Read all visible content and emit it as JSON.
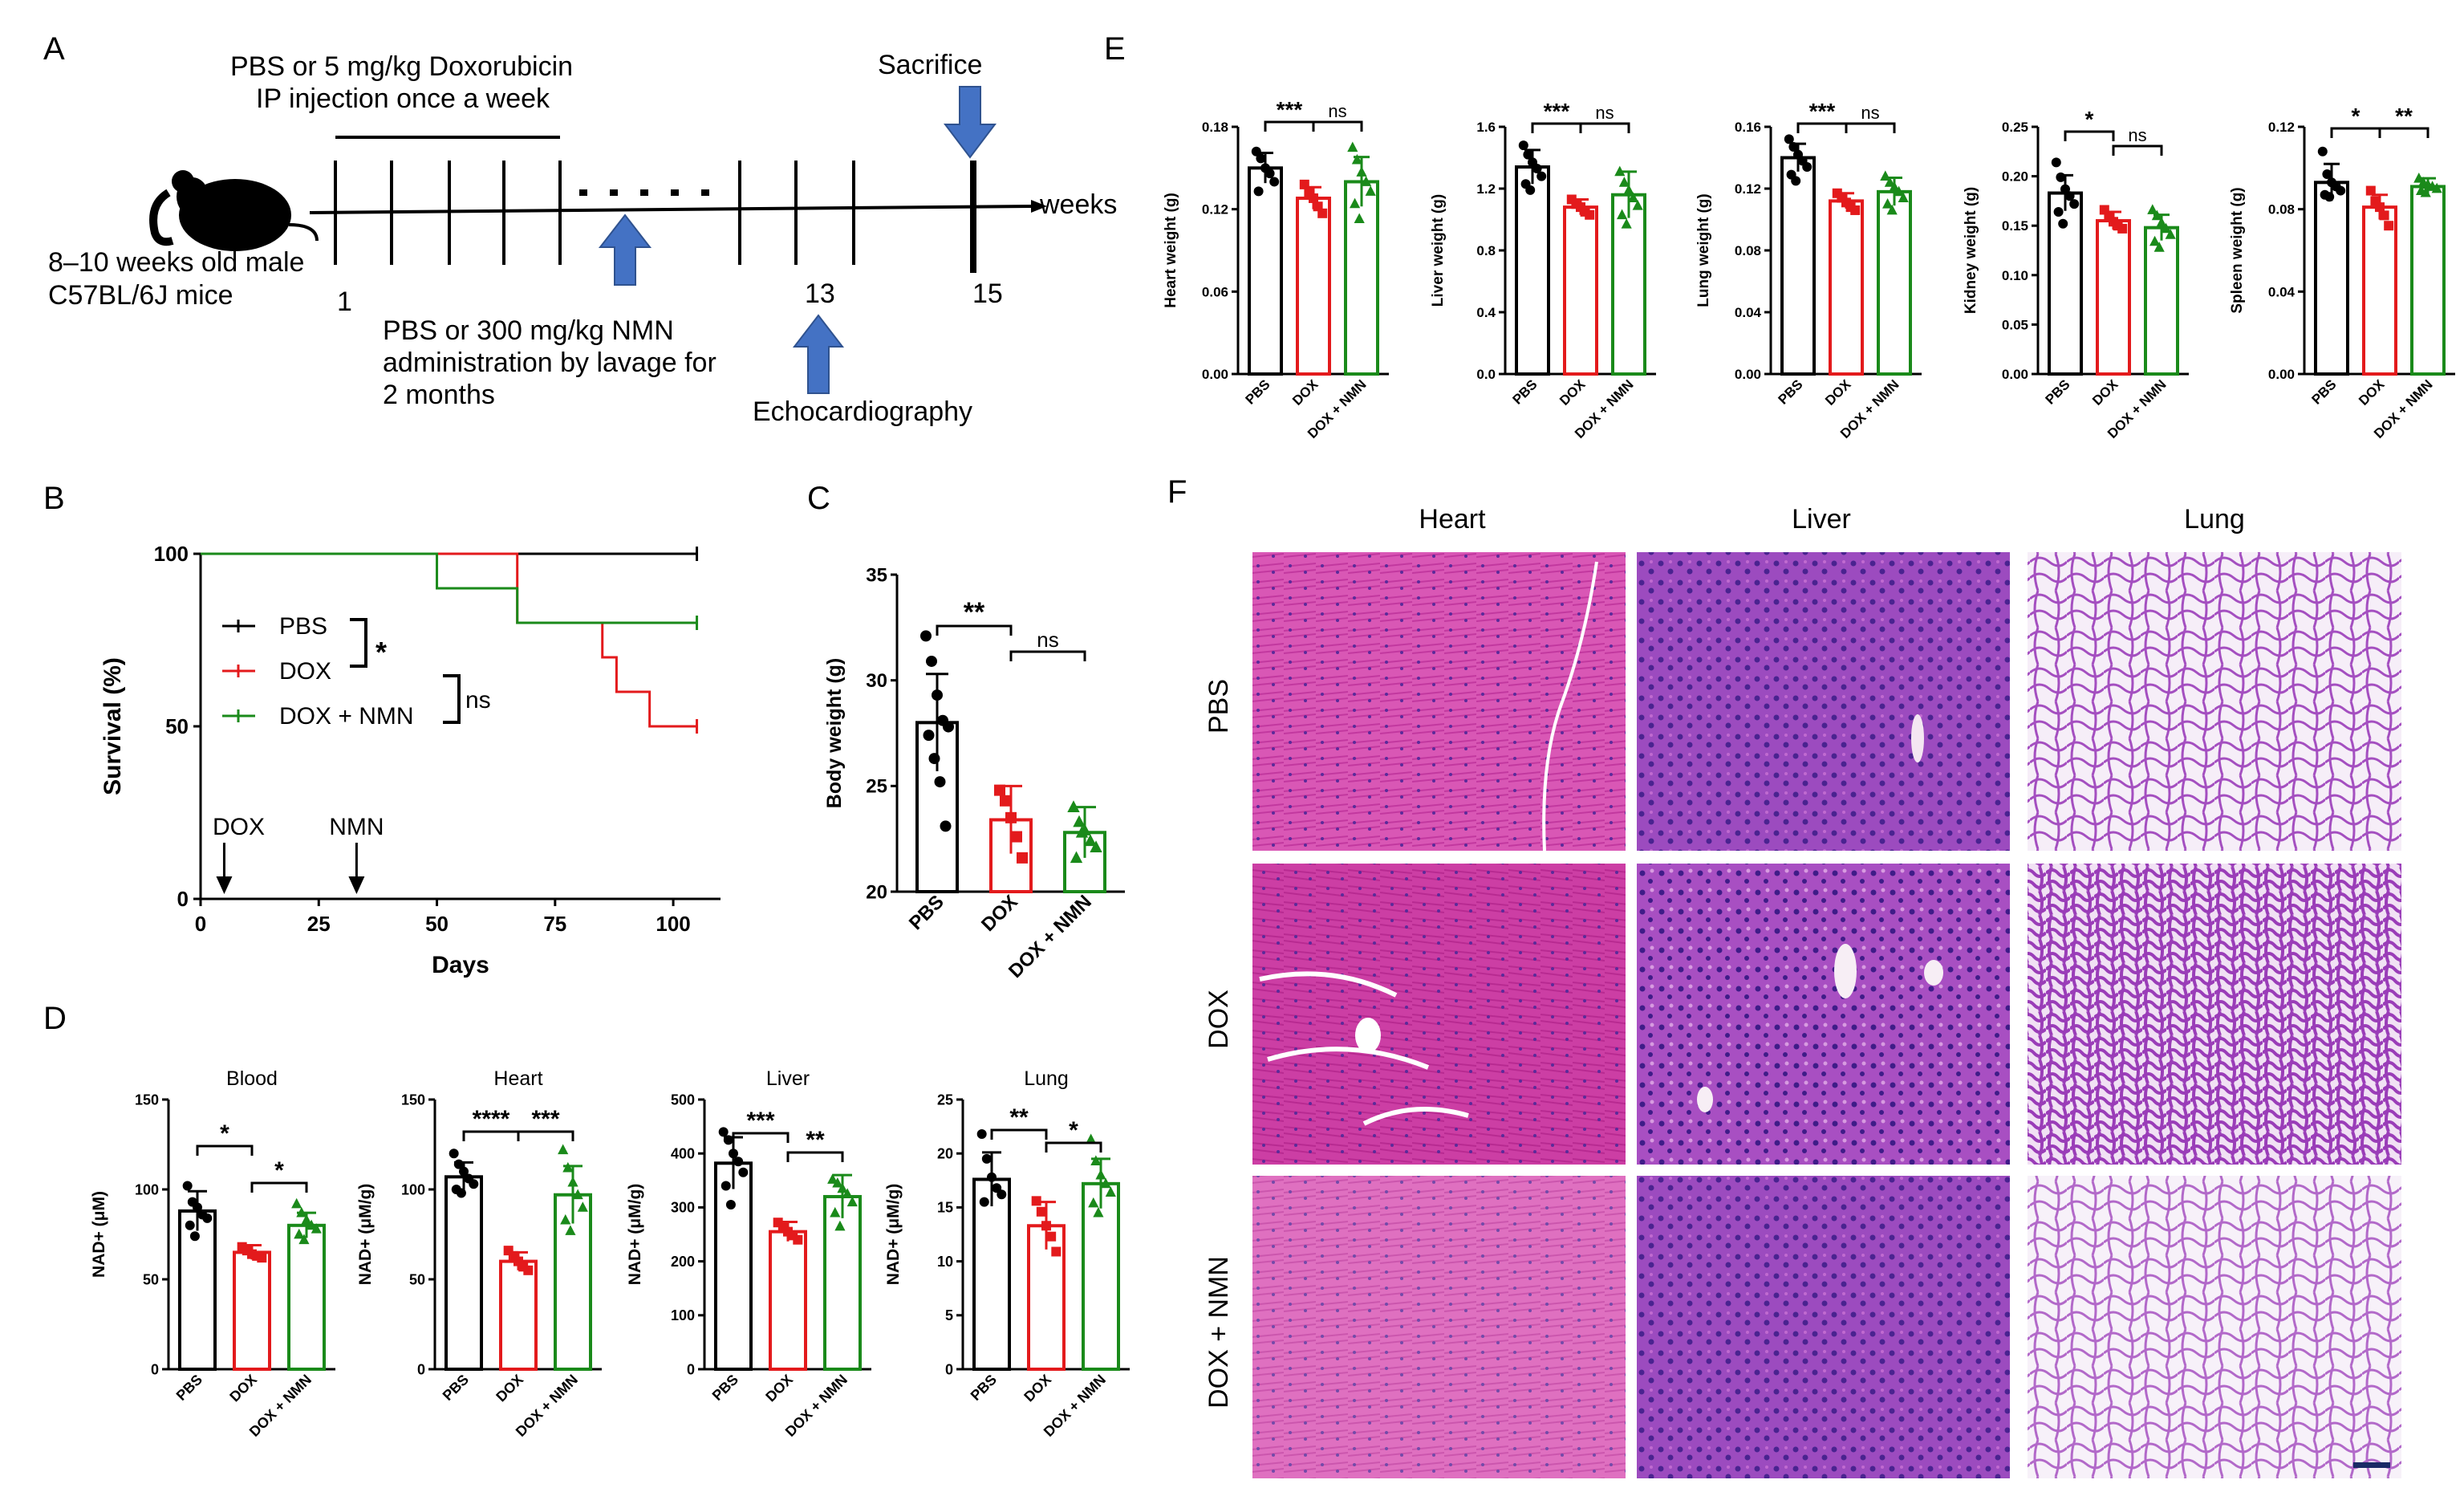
{
  "panels": {
    "a": "A",
    "b": "B",
    "c": "C",
    "d": "D",
    "e": "E",
    "f": "F"
  },
  "timeline": {
    "dox_line1": "PBS or 5 mg/kg  Doxorubicin",
    "dox_line2": "IP injection once a week",
    "sacrifice": "Sacrifice",
    "weeks": "weeks",
    "mice_line1": "8–10 weeks old male",
    "mice_line2": "C57BL/6J mice",
    "tick_1": "1",
    "tick_13": "13",
    "tick_15": "15",
    "nmn_line1": "PBS or 300 mg/kg  NMN",
    "nmn_line2": "administration by lavage for",
    "nmn_line3": "2 months",
    "echo": "Echocardiography"
  },
  "colors": {
    "pbs": "#000000",
    "dox": "#e31a1c",
    "nmn": "#1a8a1a",
    "arrow": "#4472c4",
    "he_pink": "#d63fb0",
    "he_purple": "#7b3fb3"
  },
  "chart_data": [
    {
      "id": "B",
      "type": "line",
      "title": "",
      "xlabel": "Days",
      "ylabel": "Survival (%)",
      "xlim": [
        0,
        110
      ],
      "ylim": [
        0,
        100
      ],
      "x_ticks": [
        "0",
        "25",
        "50",
        "75",
        "100"
      ],
      "y_ticks": [
        "0",
        "50",
        "100"
      ],
      "series": [
        {
          "name": "PBS",
          "steps": [
            [
              0,
              100
            ],
            [
              105,
              100
            ]
          ]
        },
        {
          "name": "DOX",
          "steps": [
            [
              0,
              100
            ],
            [
              67,
              100
            ],
            [
              67,
              80
            ],
            [
              85,
              80
            ],
            [
              85,
              70
            ],
            [
              88,
              70
            ],
            [
              88,
              60
            ],
            [
              95,
              60
            ],
            [
              95,
              50
            ],
            [
              105,
              50
            ]
          ]
        },
        {
          "name": "DOX + NMN",
          "steps": [
            [
              0,
              100
            ],
            [
              50,
              100
            ],
            [
              50,
              90
            ],
            [
              67,
              90
            ],
            [
              67,
              80
            ],
            [
              105,
              80
            ]
          ]
        }
      ],
      "legend": [
        "PBS",
        "DOX",
        "DOX + NMN"
      ],
      "annotations": {
        "pbs_vs_dox": "*",
        "dox_vs_nmn": "ns",
        "dox_arrow": "DOX",
        "nmn_arrow": "NMN"
      },
      "arrows_at": {
        "DOX": 5,
        "NMN": 33
      }
    },
    {
      "id": "C",
      "type": "bar",
      "ylabel": "Body weight (g)",
      "ylim": [
        20,
        35
      ],
      "y_ticks": [
        "20",
        "25",
        "30",
        "35"
      ],
      "categories": [
        "PBS",
        "DOX",
        "DOX + NMN"
      ],
      "values": [
        28.0,
        23.4,
        22.8
      ],
      "errors": [
        2.3,
        1.6,
        1.2
      ],
      "points": [
        [
          32.1,
          30.9,
          29.3,
          28.1,
          27.8,
          27.4,
          26.3,
          25.2,
          23.1
        ],
        [
          24.8,
          24.3,
          23.5,
          22.6,
          21.6
        ],
        [
          24.0,
          23.3,
          22.9,
          22.4,
          22.1,
          21.6,
          22.8
        ]
      ],
      "significance": [
        "**",
        "ns"
      ]
    },
    {
      "id": "D-Blood",
      "type": "bar",
      "title": "Blood",
      "ylabel": "NAD+ (μM)",
      "ylim": [
        0,
        150
      ],
      "y_ticks": [
        "0",
        "50",
        "100",
        "150"
      ],
      "categories": [
        "PBS",
        "DOX",
        "DOX + NMN"
      ],
      "values": [
        88,
        65,
        80
      ],
      "errors": [
        11,
        4,
        7
      ],
      "points": [
        [
          102,
          93,
          90,
          86,
          84,
          80,
          74
        ],
        [
          68,
          66,
          64,
          63,
          62
        ],
        [
          92,
          87,
          83,
          80,
          78,
          75,
          72
        ]
      ],
      "significance": [
        "*",
        "*"
      ]
    },
    {
      "id": "D-Heart",
      "type": "bar",
      "title": "Heart",
      "ylabel": "NAD+ (μM/g)",
      "ylim": [
        0,
        150
      ],
      "y_ticks": [
        "0",
        "50",
        "100",
        "150"
      ],
      "categories": [
        "PBS",
        "DOX",
        "DOX + NMN"
      ],
      "values": [
        107,
        60,
        97
      ],
      "errors": [
        8,
        5,
        16
      ],
      "points": [
        [
          120,
          114,
          110,
          106,
          103,
          100,
          98
        ],
        [
          66,
          63,
          60,
          57,
          55
        ],
        [
          122,
          112,
          104,
          97,
          90,
          83,
          77
        ]
      ],
      "significance": [
        "****",
        "***"
      ]
    },
    {
      "id": "D-Liver",
      "type": "bar",
      "title": "Liver",
      "ylabel": "NAD+ (μM/g)",
      "ylim": [
        0,
        500
      ],
      "y_ticks": [
        "0",
        "100",
        "200",
        "300",
        "400",
        "500"
      ],
      "categories": [
        "PBS",
        "DOX",
        "DOX + NMN"
      ],
      "values": [
        382,
        255,
        320
      ],
      "errors": [
        48,
        18,
        40
      ],
      "points": [
        [
          440,
          425,
          400,
          385,
          365,
          340,
          305
        ],
        [
          272,
          262,
          255,
          248,
          240
        ],
        [
          352,
          345,
          335,
          325,
          310,
          290,
          265
        ]
      ],
      "significance": [
        "***",
        "**"
      ]
    },
    {
      "id": "D-Lung",
      "type": "bar",
      "title": "Lung",
      "ylabel": "NAD+ (μM/g)",
      "ylim": [
        0,
        25
      ],
      "y_ticks": [
        "0",
        "5",
        "10",
        "15",
        "20",
        "25"
      ],
      "categories": [
        "PBS",
        "DOX",
        "DOX + NMN"
      ],
      "values": [
        17.6,
        13.3,
        17.2
      ],
      "errors": [
        2.5,
        2.2,
        2.3
      ],
      "points": [
        [
          21.8,
          19.5,
          17.8,
          16.8,
          16.2,
          15.5
        ],
        [
          15.6,
          14.6,
          13.3,
          12.3,
          10.9
        ],
        [
          21.3,
          19.3,
          18.0,
          17.2,
          16.4,
          15.4,
          14.5
        ]
      ],
      "significance": [
        "**",
        "*"
      ]
    },
    {
      "id": "E-Heart",
      "type": "bar",
      "ylabel": "Heart weight (g)",
      "ylim": [
        0,
        0.18
      ],
      "y_ticks": [
        "0.00",
        "0.06",
        "0.12",
        "0.18"
      ],
      "categories": [
        "PBS",
        "DOX",
        "DOX + NMN"
      ],
      "values": [
        0.15,
        0.128,
        0.14
      ],
      "errors": [
        0.011,
        0.008,
        0.018
      ],
      "points": [
        [
          0.162,
          0.157,
          0.15,
          0.146,
          0.14,
          0.133
        ],
        [
          0.138,
          0.132,
          0.128,
          0.122,
          0.117
        ],
        [
          0.165,
          0.156,
          0.147,
          0.14,
          0.133,
          0.124,
          0.113
        ]
      ],
      "significance": [
        "***",
        "ns"
      ]
    },
    {
      "id": "E-Liver",
      "type": "bar",
      "ylabel": "Liver weight (g)",
      "ylim": [
        0,
        1.6
      ],
      "y_ticks": [
        "0.0",
        "0.4",
        "0.8",
        "1.2",
        "1.6"
      ],
      "categories": [
        "PBS",
        "DOX",
        "DOX + NMN"
      ],
      "values": [
        1.34,
        1.08,
        1.16
      ],
      "errors": [
        0.11,
        0.05,
        0.15
      ],
      "points": [
        [
          1.48,
          1.42,
          1.37,
          1.33,
          1.28,
          1.23,
          1.19
        ],
        [
          1.13,
          1.1,
          1.08,
          1.05,
          1.03
        ],
        [
          1.31,
          1.24,
          1.19,
          1.14,
          1.09,
          1.03,
          0.97
        ]
      ],
      "significance": [
        "***",
        "ns"
      ]
    },
    {
      "id": "E-Lung",
      "type": "bar",
      "ylabel": "Lung weight (g)",
      "ylim": [
        0,
        0.16
      ],
      "y_ticks": [
        "0.00",
        "0.04",
        "0.08",
        "0.12",
        "0.16"
      ],
      "categories": [
        "PBS",
        "DOX",
        "DOX + NMN"
      ],
      "values": [
        0.14,
        0.112,
        0.118
      ],
      "errors": [
        0.009,
        0.005,
        0.009
      ],
      "points": [
        [
          0.152,
          0.147,
          0.142,
          0.138,
          0.134,
          0.129,
          0.125
        ],
        [
          0.117,
          0.114,
          0.111,
          0.108,
          0.106
        ],
        [
          0.128,
          0.124,
          0.121,
          0.118,
          0.114,
          0.11,
          0.106
        ]
      ],
      "significance": [
        "***",
        "ns"
      ]
    },
    {
      "id": "E-Kidney",
      "type": "bar",
      "ylabel": "Kidney weight (g)",
      "ylim": [
        0,
        0.25
      ],
      "y_ticks": [
        "0.00",
        "0.05",
        "0.10",
        "0.15",
        "0.20",
        "0.25"
      ],
      "categories": [
        "PBS",
        "DOX",
        "DOX + NMN"
      ],
      "values": [
        0.183,
        0.155,
        0.148
      ],
      "errors": [
        0.018,
        0.009,
        0.013
      ],
      "points": [
        [
          0.214,
          0.199,
          0.187,
          0.18,
          0.172,
          0.164,
          0.152
        ],
        [
          0.166,
          0.16,
          0.154,
          0.15,
          0.147
        ],
        [
          0.166,
          0.16,
          0.153,
          0.147,
          0.141,
          0.134,
          0.128
        ]
      ],
      "significance": [
        "*",
        "ns"
      ]
    },
    {
      "id": "E-Spleen",
      "type": "bar",
      "ylabel": "Spleen weight (g)",
      "ylim": [
        0,
        0.12
      ],
      "y_ticks": [
        "0.00",
        "0.04",
        "0.08",
        "0.12"
      ],
      "categories": [
        "PBS",
        "DOX",
        "DOX + NMN"
      ],
      "values": [
        0.093,
        0.081,
        0.091
      ],
      "errors": [
        0.009,
        0.006,
        0.004
      ],
      "points": [
        [
          0.108,
          0.097,
          0.093,
          0.091,
          0.089,
          0.087,
          0.086
        ],
        [
          0.089,
          0.084,
          0.081,
          0.077,
          0.072
        ],
        [
          0.095,
          0.093,
          0.092,
          0.091,
          0.09,
          0.089,
          0.088
        ]
      ],
      "significance": [
        "*",
        "**"
      ]
    }
  ],
  "histology": {
    "columns": [
      "Heart",
      "Liver",
      "Lung"
    ],
    "rows": [
      "PBS",
      "DOX",
      "DOX + NMN"
    ]
  }
}
